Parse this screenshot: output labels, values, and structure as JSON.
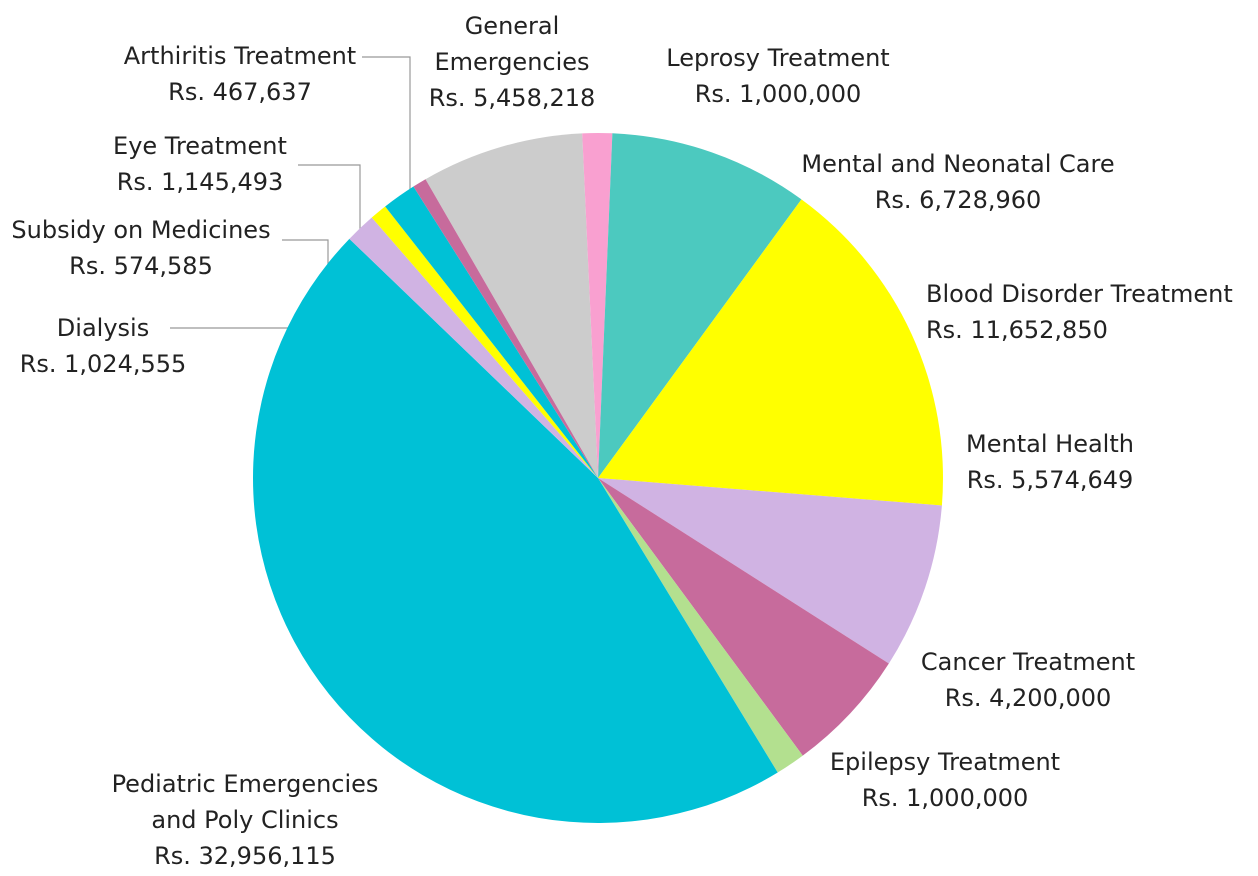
{
  "chart_data": {
    "type": "pie",
    "categories": [
      "General Emergencies",
      "Leprosy Treatment",
      "Mental and Neonatal Care",
      "Blood Disorder Treatment",
      "Mental Health",
      "Cancer Treatment",
      "Epilepsy Treatment",
      "Pediatric Emergencies and Poly Clinics",
      "Dialysis",
      "Subsidy on Medicines",
      "Eye Treatment",
      "Arthiritis Treatment"
    ],
    "values": [
      5458218,
      1000000,
      6728960,
      11652850,
      5574649,
      4200000,
      1000000,
      32956115,
      1024555,
      574585,
      1145493,
      467637
    ],
    "value_labels": [
      "Rs. 5,458,218",
      "Rs. 1,000,000",
      "Rs. 6,728,960",
      "Rs. 11,652,850",
      "Rs. 5,574,649",
      "Rs. 4,200,000",
      "Rs. 1,000,000",
      "Rs. 32,956,115",
      "Rs. 1,024,555",
      "Rs. 574,585",
      "Rs. 1,145,493",
      "Rs. 467,637"
    ],
    "colors": [
      "#cccccc",
      "#f9a0d0",
      "#4cc9bf",
      "#ffff00",
      "#d0b3e3",
      "#c76b9c",
      "#b3e08f",
      "#00c1d6",
      "#d0b3e3",
      "#ffff00",
      "#00c1d6",
      "#c76b9c"
    ]
  }
}
